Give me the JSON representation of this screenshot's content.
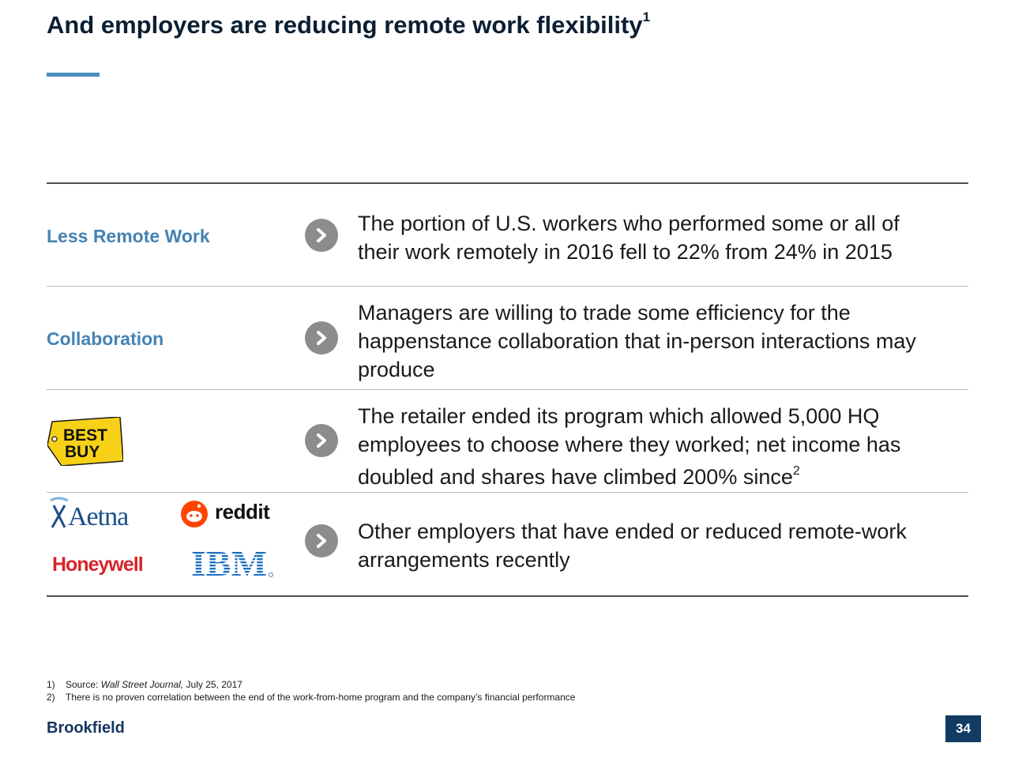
{
  "header": {
    "title": "And employers are reducing remote work flexibility",
    "title_sup": "1"
  },
  "rows": [
    {
      "label": "Less Remote Work",
      "lines": [
        "The portion of U.S. workers who performed some or all of",
        "their work remotely in 2016 fell to 22% from 24% in 2015"
      ]
    },
    {
      "label": "Collaboration",
      "lines": [
        "Managers are willing to trade some efficiency for the",
        "happenstance collaboration that in-person interactions may",
        "produce"
      ]
    },
    {
      "logo": "best-buy",
      "lines": [
        "The retailer ended its program which allowed 5,000 HQ",
        "employees to choose where they worked; net income has",
        "doubled and shares have climbed 200% since"
      ],
      "sup": "2"
    },
    {
      "logos": [
        "aetna",
        "reddit",
        "honeywell",
        "ibm"
      ],
      "lines": [
        "Other employers that have ended or reduced remote-work",
        "arrangements recently"
      ]
    }
  ],
  "logos": {
    "bestbuy_line1": "BEST",
    "bestbuy_line2": "BUY",
    "aetna": "Aetna",
    "reddit": "reddit",
    "honeywell": "Honeywell",
    "ibm": "IBM"
  },
  "footnotes": [
    {
      "num": "1)",
      "prefix": "Source: ",
      "italic": "Wall Street Journal,",
      "suffix": " July 25, 2017"
    },
    {
      "num": "2)",
      "text": "There is no proven correlation between the end of the work-from-home program and the company’s financial performance"
    }
  ],
  "footer": {
    "brand": "Brookfield",
    "page": "34"
  },
  "colors": {
    "accent": "#4b8ec0",
    "label_blue": "#4583b3",
    "navy": "#123b63",
    "chevron_gray": "#8c8c8c"
  },
  "icons": [
    "chevron-right-icon"
  ]
}
